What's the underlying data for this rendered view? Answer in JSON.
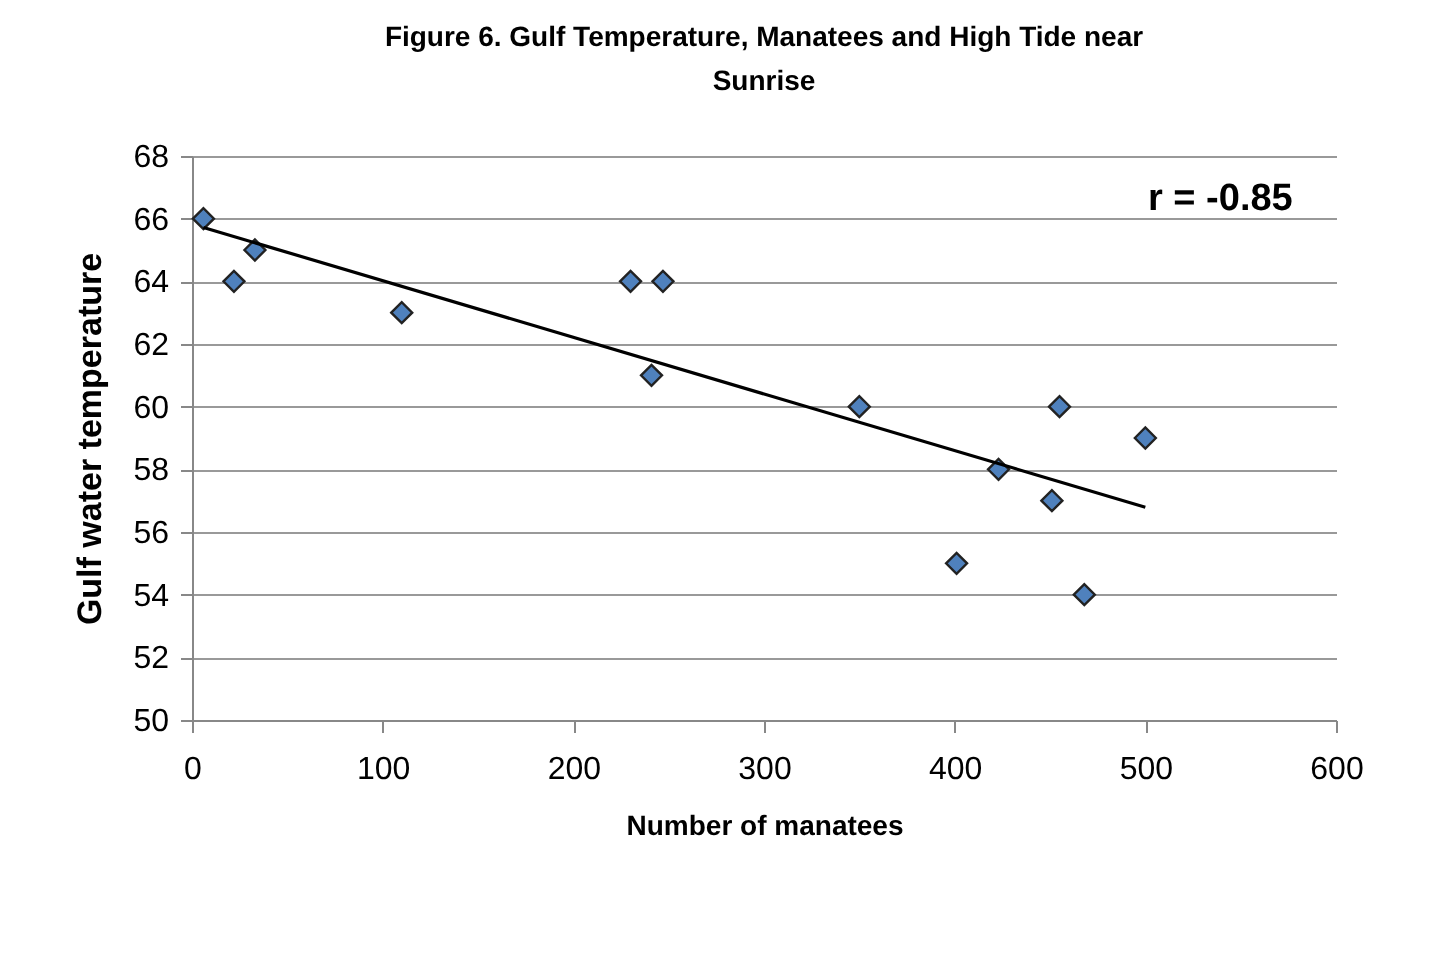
{
  "chart_data": {
    "type": "scatter",
    "title": "Figure 6. Gulf Temperature,  Manatees and High Tide near Sunrise",
    "xlabel": "Number of manatees",
    "ylabel": "Gulf  water temperature",
    "annotations": [
      "r = -0.85"
    ],
    "series": [
      {
        "color": "#4f81bd",
        "marker": "diamond",
        "x": [
          6,
          22,
          33,
          110,
          230,
          247,
          241,
          350,
          401,
          423,
          451,
          455,
          468,
          500
        ],
        "values": [
          66,
          64,
          65,
          63,
          64,
          64,
          61,
          60,
          55,
          58,
          57,
          60,
          54,
          59
        ]
      },
      {
        "type": "line",
        "color": "#000000",
        "marker": "none",
        "x": [
          6,
          500
        ],
        "values": [
          65.72,
          56.79
        ]
      }
    ],
    "xlim": [
      0,
      600
    ],
    "xticks": [
      0,
      100,
      200,
      300,
      400,
      500,
      600
    ],
    "ylim": [
      50,
      68
    ],
    "yticks": [
      50,
      52,
      54,
      56,
      58,
      60,
      62,
      64,
      66,
      68
    ],
    "grid": "y"
  }
}
